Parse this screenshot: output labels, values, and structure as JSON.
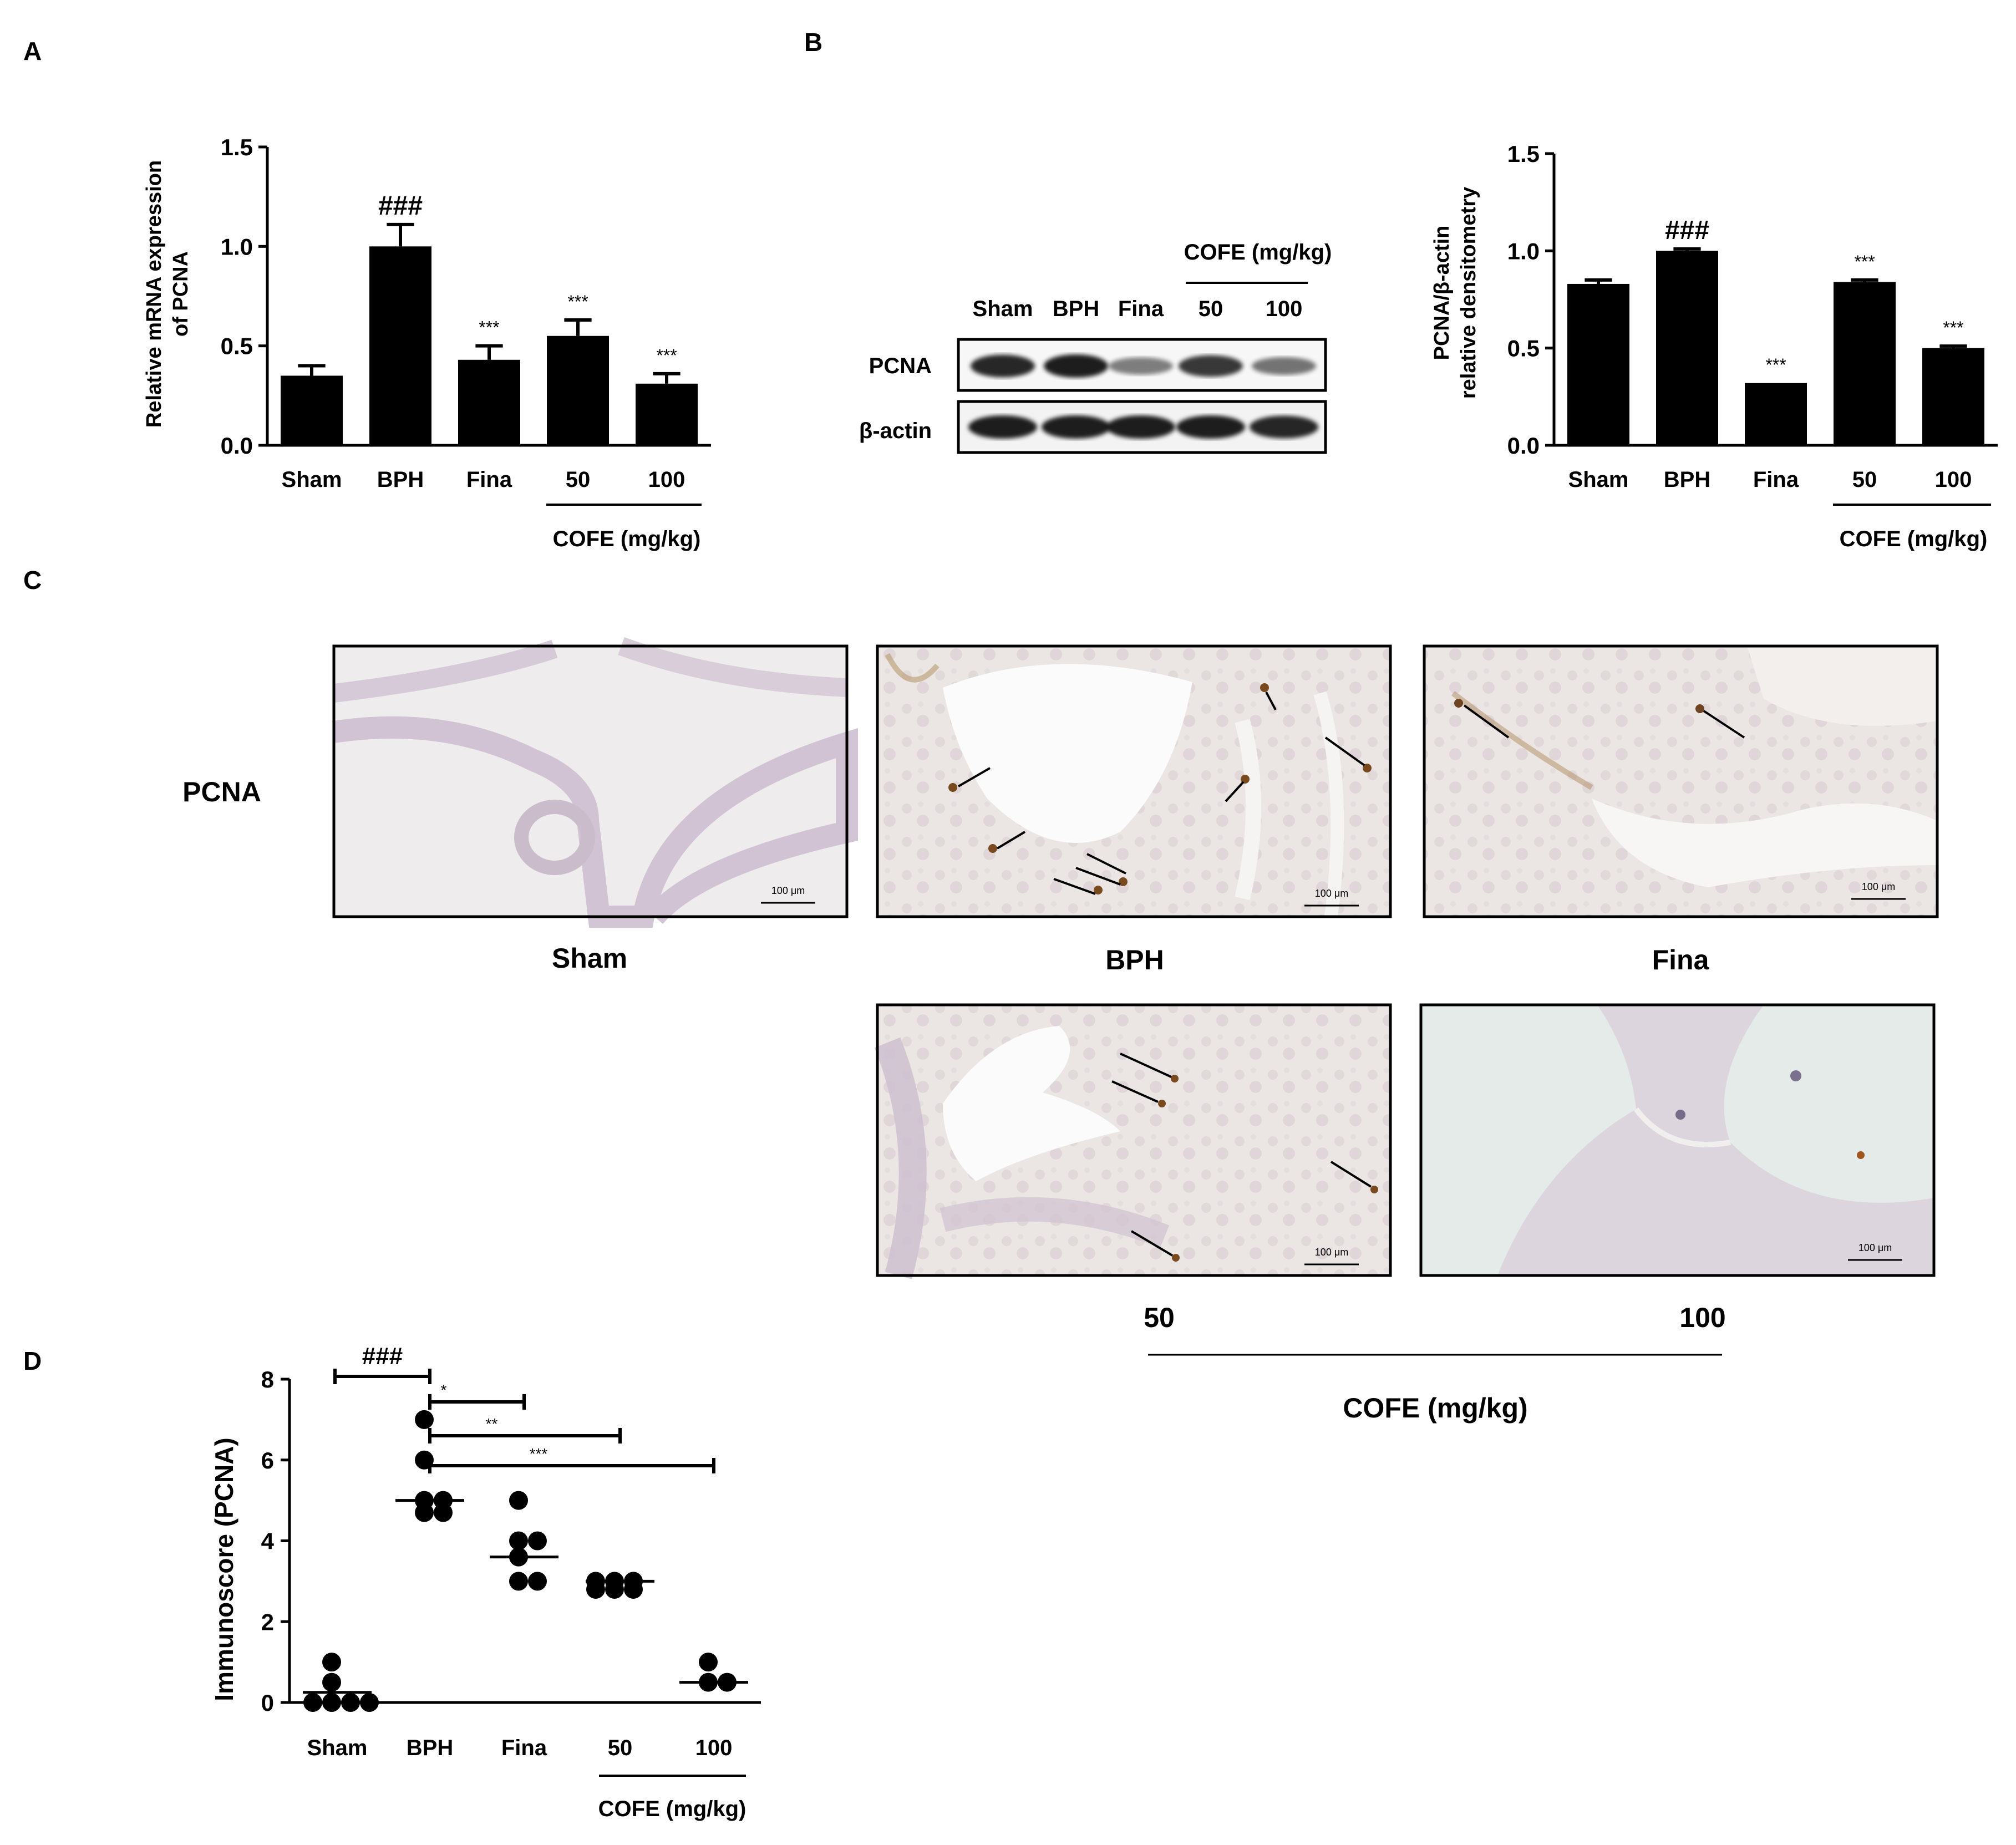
{
  "panel_labels": {
    "a": "A",
    "b": "B",
    "c": "C",
    "d": "D"
  },
  "colors": {
    "bar": "#000000",
    "tissue_bg": "#e9e3e0",
    "stain": "#8a5a2e"
  },
  "panel_a": {
    "ylabel_line1": "Relative mRNA expression",
    "ylabel_line2": "of PCNA",
    "group_label": "COFE (mg/kg)"
  },
  "panel_b": {
    "blot": {
      "header": "COFE (mg/kg)",
      "lanes": [
        "Sham",
        "BPH",
        "Fina",
        "50",
        "100"
      ],
      "rows": [
        "PCNA",
        "β-actin"
      ],
      "pcna_intensity": [
        0.85,
        0.9,
        0.35,
        0.75,
        0.4
      ],
      "actin_intensity": [
        0.9,
        0.9,
        0.9,
        0.9,
        0.85
      ]
    },
    "ylabel_line1": "PCNA/β-actin",
    "ylabel_line2": "relative densitometry",
    "group_label": "COFE (mg/kg)"
  },
  "panel_c": {
    "row_label": "PCNA",
    "captions": [
      "Sham",
      "BPH",
      "Fina",
      "50",
      "100"
    ],
    "scale_bar": "100 μm",
    "group_label": "COFE (mg/kg)"
  },
  "panel_d": {
    "ylabel": "Immunoscore (PCNA)",
    "group_label": "COFE (mg/kg)"
  },
  "chart_data": [
    {
      "type": "bar",
      "panel": "A",
      "categories": [
        "Sham",
        "BPH",
        "Fina",
        "50",
        "100"
      ],
      "values": [
        0.35,
        1.0,
        0.43,
        0.55,
        0.31
      ],
      "errors": [
        0.05,
        0.11,
        0.07,
        0.08,
        0.05
      ],
      "annotations": [
        "",
        "###",
        "***",
        "***",
        "***"
      ],
      "ylim": [
        0,
        1.5
      ],
      "yticks": [
        "0.0",
        "0.5",
        "1.0",
        "1.5"
      ],
      "ylabel": "Relative mRNA expression of PCNA",
      "group_label": "COFE (mg/kg)"
    },
    {
      "type": "bar",
      "panel": "B",
      "categories": [
        "Sham",
        "BPH",
        "Fina",
        "50",
        "100"
      ],
      "values": [
        0.83,
        1.0,
        0.32,
        0.84,
        0.5
      ],
      "errors": [
        0.02,
        0.01,
        0.0,
        0.01,
        0.01
      ],
      "annotations": [
        "",
        "###",
        "***",
        "***",
        "***"
      ],
      "ylim": [
        0,
        1.5
      ],
      "yticks": [
        "0.0",
        "0.5",
        "1.0",
        "1.5"
      ],
      "ylabel": "PCNA/β-actin relative densitometry",
      "group_label": "COFE (mg/kg)"
    },
    {
      "type": "scatter",
      "panel": "D",
      "categories": [
        "Sham",
        "BPH",
        "Fina",
        "50",
        "100"
      ],
      "points": [
        [
          0,
          0,
          0,
          0,
          0.5,
          1
        ],
        [
          5,
          5,
          4.7,
          4.7,
          6,
          7
        ],
        [
          3,
          3,
          4,
          4,
          3.6,
          5
        ],
        [
          3,
          3,
          3,
          2.8,
          2.8,
          2.8
        ],
        [
          0.5,
          0.5,
          1
        ]
      ],
      "medians": [
        0.25,
        5,
        3.6,
        3,
        0.5
      ],
      "ylim": [
        0,
        8
      ],
      "yticks": [
        "0",
        "2",
        "4",
        "6",
        "8"
      ],
      "ylabel": "Immunoscore (PCNA)",
      "comparisons": [
        {
          "from": 0,
          "to": 1,
          "label": "###"
        },
        {
          "from": 1,
          "to": 2,
          "label": "*"
        },
        {
          "from": 1,
          "to": 3,
          "label": "**"
        },
        {
          "from": 1,
          "to": 4,
          "label": "***"
        }
      ],
      "group_label": "COFE (mg/kg)"
    }
  ]
}
